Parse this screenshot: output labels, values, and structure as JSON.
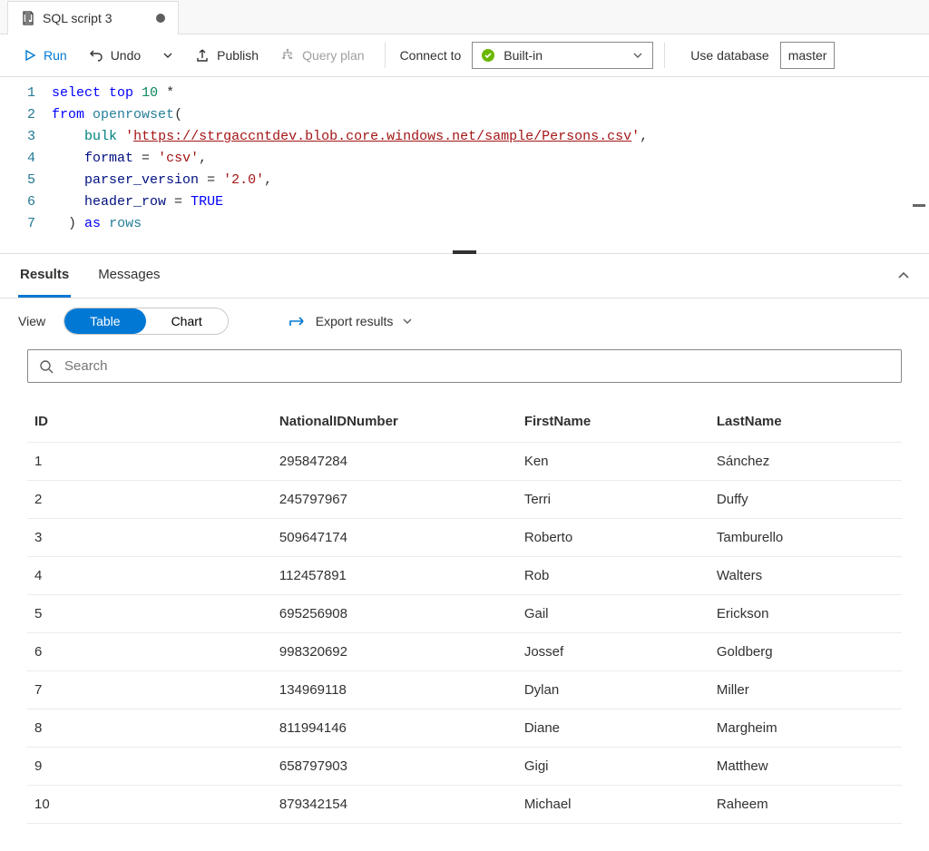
{
  "tab": {
    "title": "SQL script 3",
    "dirty": true
  },
  "toolbar": {
    "run": "Run",
    "undo": "Undo",
    "publish": "Publish",
    "query_plan": "Query plan",
    "connect_to": "Connect to",
    "connection": "Built-in",
    "use_database": "Use database",
    "database": "master"
  },
  "editor": {
    "lines": [
      {
        "n": "1"
      },
      {
        "n": "2"
      },
      {
        "n": "3"
      },
      {
        "n": "4"
      },
      {
        "n": "5"
      },
      {
        "n": "6"
      },
      {
        "n": "7"
      }
    ],
    "sql": {
      "select": "select",
      "top": "top",
      "topn": "10",
      "star": "*",
      "from": "from",
      "openrowset": "openrowset",
      "bulk": "bulk",
      "url": "https://strgaccntdev.blob.core.windows.net/sample/Persons.csv",
      "format_kw": "format",
      "format_val": "'csv'",
      "parser_kw": "parser_version",
      "parser_val": "'2.0'",
      "header_kw": "header_row",
      "true": "TRUE",
      "as": "as",
      "rows": "rows"
    }
  },
  "results": {
    "tab_results": "Results",
    "tab_messages": "Messages",
    "view_label": "View",
    "view_table": "Table",
    "view_chart": "Chart",
    "export": "Export results",
    "search_placeholder": "Search",
    "columns": [
      "ID",
      "NationalIDNumber",
      "FirstName",
      "LastName"
    ],
    "rows": [
      [
        "1",
        "295847284",
        "Ken",
        "Sánchez"
      ],
      [
        "2",
        "245797967",
        "Terri",
        "Duffy"
      ],
      [
        "3",
        "509647174",
        "Roberto",
        "Tamburello"
      ],
      [
        "4",
        "112457891",
        "Rob",
        "Walters"
      ],
      [
        "5",
        "695256908",
        "Gail",
        "Erickson"
      ],
      [
        "6",
        "998320692",
        "Jossef",
        "Goldberg"
      ],
      [
        "7",
        "134969118",
        "Dylan",
        "Miller"
      ],
      [
        "8",
        "811994146",
        "Diane",
        "Margheim"
      ],
      [
        "9",
        "658797903",
        "Gigi",
        "Matthew"
      ],
      [
        "10",
        "879342154",
        "Michael",
        "Raheem"
      ]
    ]
  },
  "colors": {
    "accent": "#0078d4"
  }
}
